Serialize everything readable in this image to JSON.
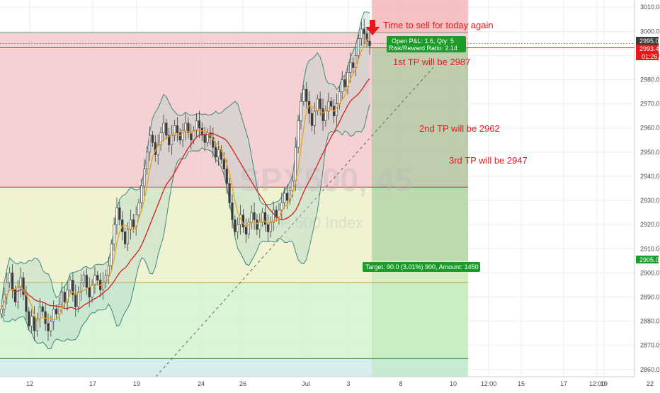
{
  "chart_data": {
    "type": "candlestick",
    "watermark": {
      "symbol": "SPX500, 45",
      "name": "S&P 500 Index"
    },
    "ylim": [
      2857,
      3013
    ],
    "y_ticks": [
      3010,
      3000,
      2990,
      2980,
      2970,
      2960,
      2950,
      2940,
      2930,
      2920,
      2910,
      2900,
      2890,
      2880,
      2870,
      2860
    ],
    "x_ticks": [
      "12",
      "17",
      "19",
      "24",
      "26",
      "Jul",
      "3",
      "8",
      "10",
      "12:00",
      "15",
      "17",
      "19",
      "12:00",
      "22"
    ],
    "price_label": "2995.0",
    "price_label_2": "2993.4",
    "countdown": "01:26",
    "target_label": "2905.0",
    "annotations": {
      "headline": "Time to sell for today again",
      "tp1": "1st TP will be 2987",
      "tp2": "2nd TP will be 2962",
      "tp3": "3rd TP will be 2947"
    },
    "position_box": {
      "pnl": "Open P&L: 1.6, Qty: 5",
      "ratio": "Risk/Reward Ratio: 2.14",
      "target": "Target: 90.0 (3.01%) 900, Amount: 1450"
    },
    "levels": {
      "zone_top": 2999.5,
      "red_line": 2993.2,
      "zone_mid": 2935.5,
      "zone_low": 2896,
      "zone_bottom": 2864.5,
      "target": 2905,
      "last": 2995
    },
    "close_series": [
      2885,
      2891,
      2896,
      2900,
      2893,
      2888,
      2894,
      2898,
      2891,
      2884,
      2878,
      2882,
      2876,
      2881,
      2886,
      2884,
      2879,
      2876,
      2880,
      2885,
      2883,
      2887,
      2892,
      2888,
      2893,
      2897,
      2891,
      2886,
      2892,
      2896,
      2899,
      2894,
      2890,
      2895,
      2899,
      2897,
      2893,
      2896,
      2899,
      2903,
      2912,
      2920,
      2927,
      2922,
      2917,
      2912,
      2918,
      2922,
      2919,
      2924,
      2929,
      2936,
      2943,
      2950,
      2957,
      2954,
      2949,
      2953,
      2958,
      2962,
      2957,
      2953,
      2957,
      2961,
      2958,
      2955,
      2959,
      2962,
      2958,
      2955,
      2959,
      2963,
      2960,
      2957,
      2954,
      2958,
      2956,
      2952,
      2948,
      2951,
      2947,
      2943,
      2937,
      2929,
      2922,
      2917,
      2920,
      2924,
      2919,
      2916,
      2921,
      2925,
      2922,
      2918,
      2921,
      2925,
      2920,
      2917,
      2921,
      2926,
      2923,
      2926,
      2929,
      2933,
      2930,
      2934,
      2938,
      2952,
      2963,
      2971,
      2976,
      2971,
      2966,
      2961,
      2967,
      2972,
      2968,
      2963,
      2967,
      2971,
      2969,
      2965,
      2970,
      2975,
      2980,
      2977,
      2983,
      2987,
      2985,
      2990,
      2997,
      3001,
      2999,
      2996,
      2994
    ]
  }
}
